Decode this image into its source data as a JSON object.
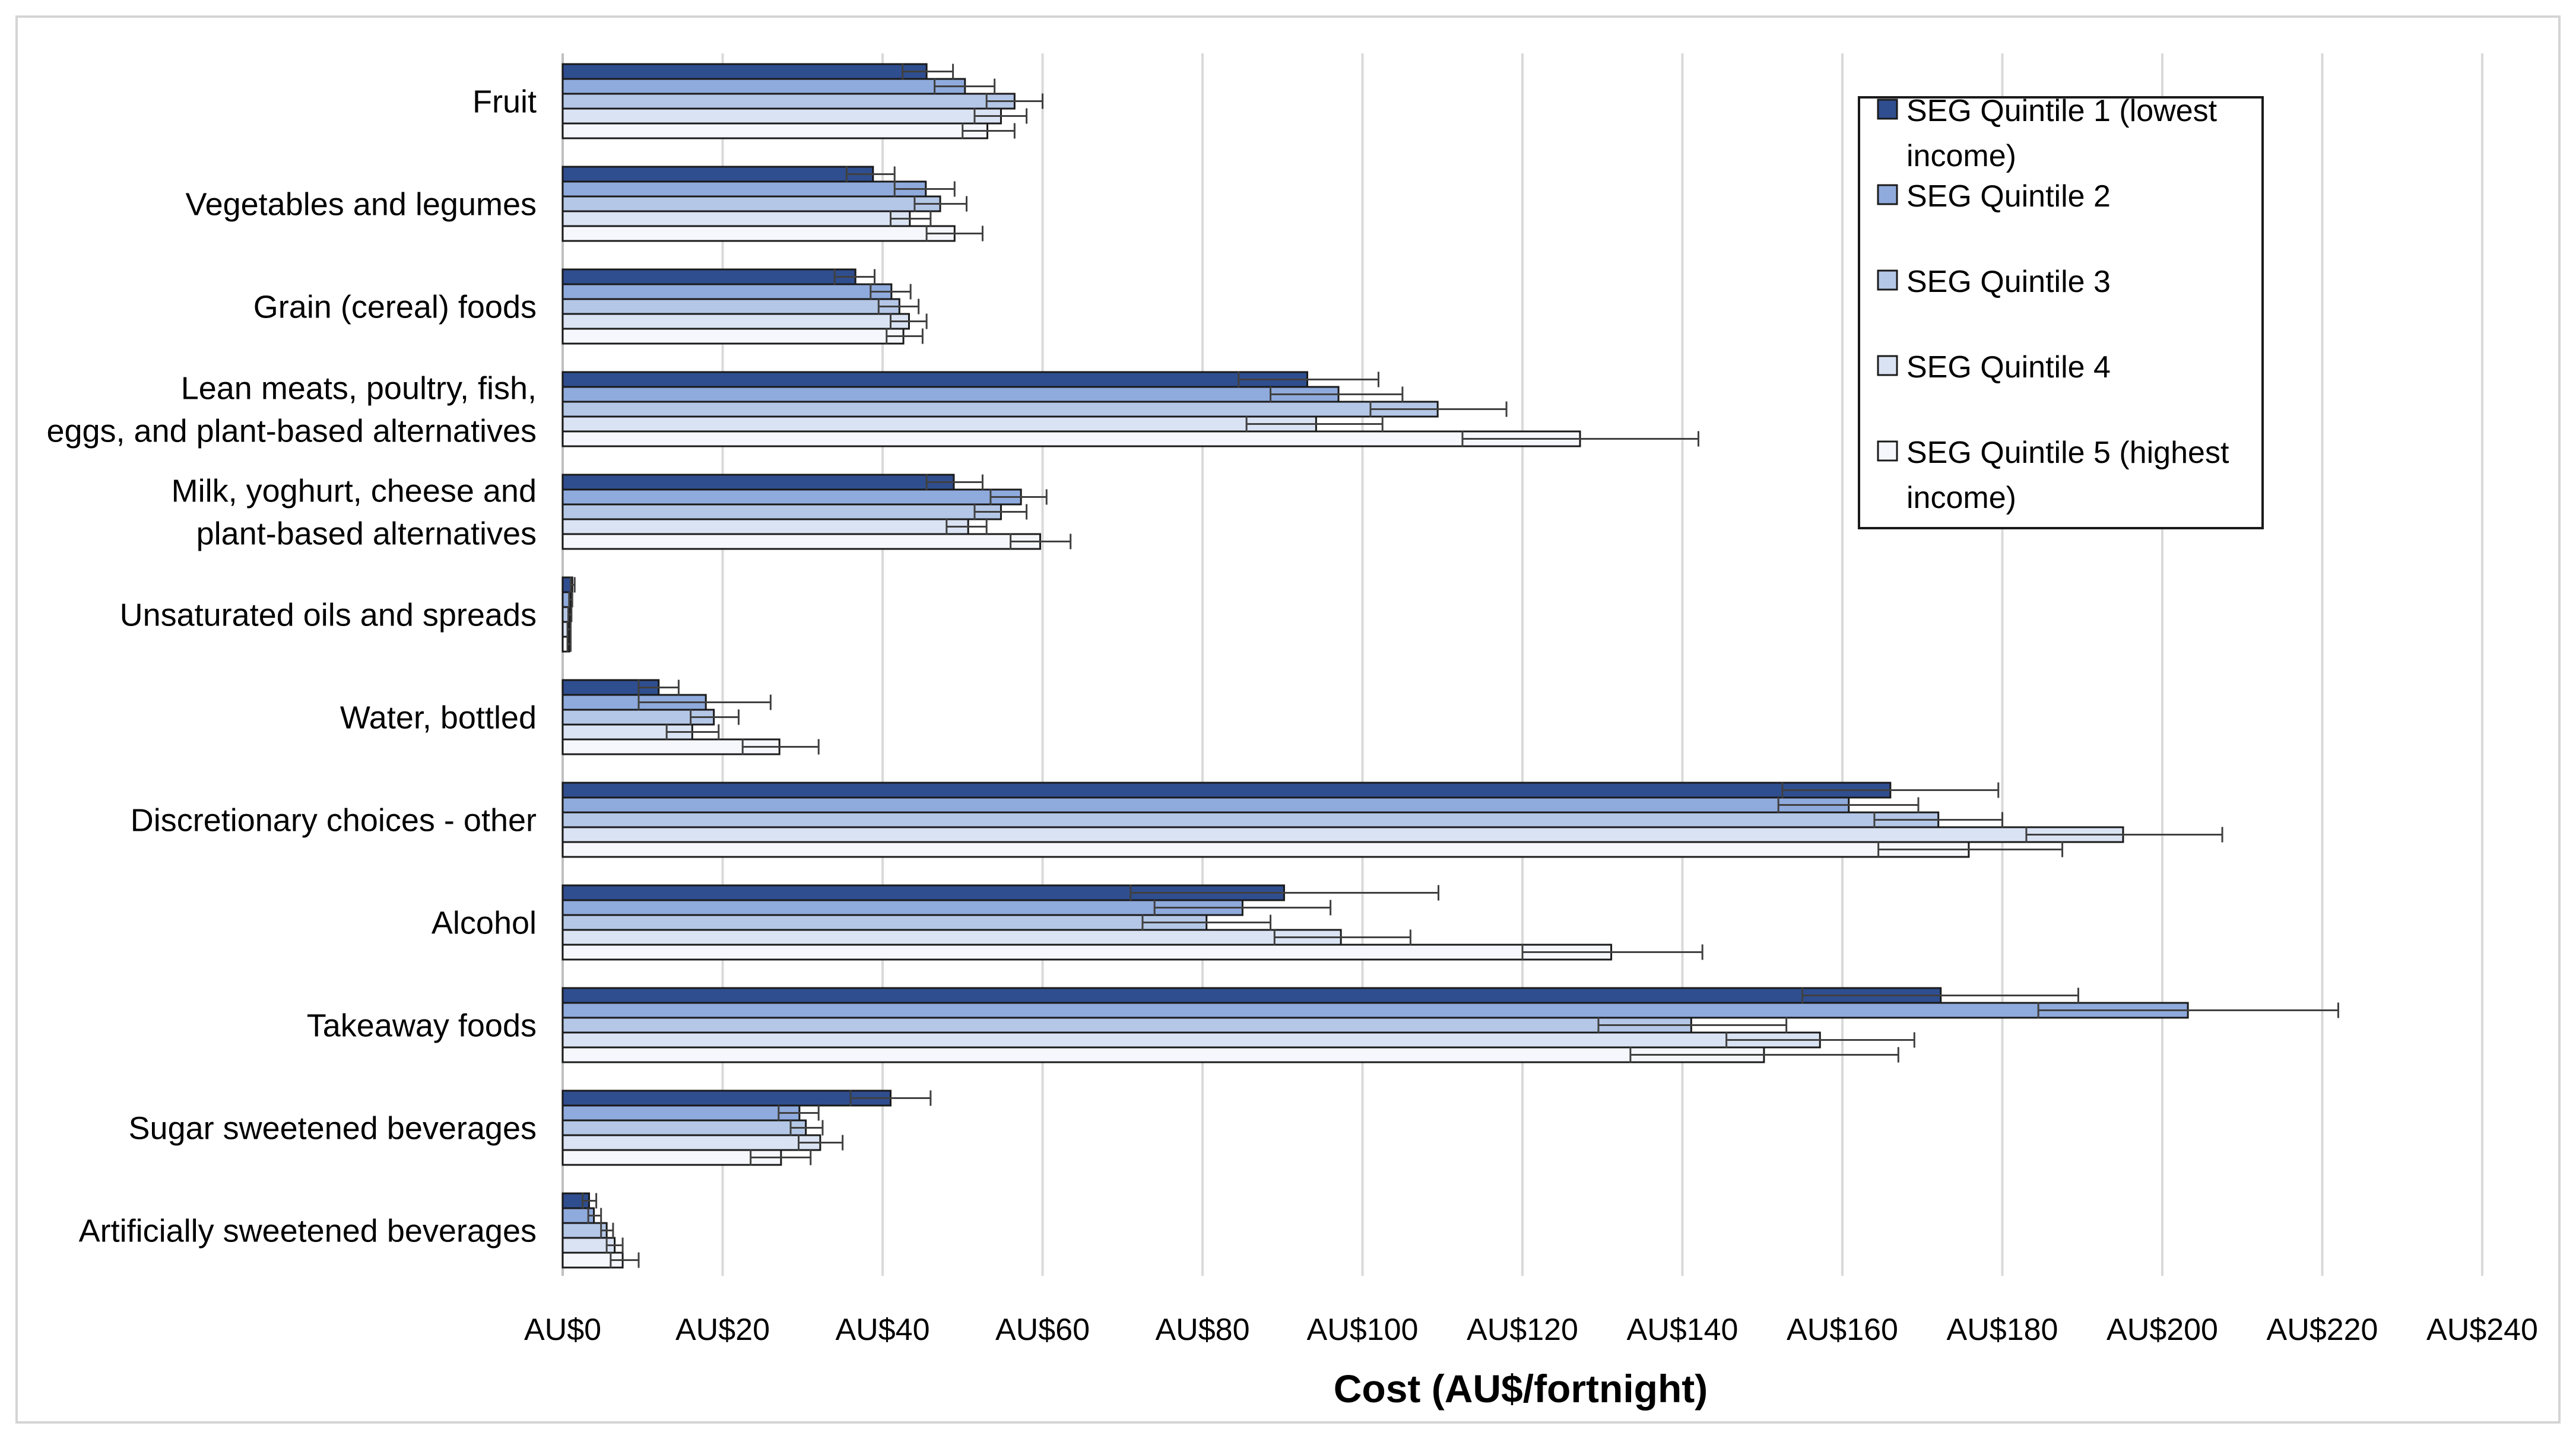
{
  "chart_data": {
    "type": "bar",
    "orientation": "horizontal",
    "title": "",
    "xlabel": "Cost (AU$/fortnight)",
    "ylabel": "",
    "xlim": [
      0,
      240
    ],
    "x_ticks": [
      0,
      20,
      40,
      60,
      80,
      100,
      120,
      140,
      160,
      180,
      200,
      220,
      240
    ],
    "x_tick_labels": [
      "AU$0",
      "AU$20",
      "AU$40",
      "AU$60",
      "AU$80",
      "AU$100",
      "AU$120",
      "AU$140",
      "AU$160",
      "AU$180",
      "AU$200",
      "AU$220",
      "AU$240"
    ],
    "grid": "vertical",
    "legend_position": "top-right",
    "error_bars": true,
    "categories": [
      "Fruit",
      "Vegetables and legumes",
      "Grain (cereal) foods",
      "Lean meats, poultry, fish, eggs, and plant-based alternatives",
      "Milk, yoghurt, cheese and plant-based alternatives",
      "Unsaturated oils and spreads",
      "Water, bottled",
      "Discretionary choices - other",
      "Alcohol",
      "Takeaway foods",
      "Sugar sweetened beverages",
      "Artificially sweetened beverages"
    ],
    "category_label_lines": [
      [
        "Fruit"
      ],
      [
        "Vegetables and legumes"
      ],
      [
        "Grain (cereal) foods"
      ],
      [
        "Lean meats, poultry, fish,",
        "eggs, and plant-based alternatives"
      ],
      [
        "Milk, yoghurt, cheese and",
        "plant-based alternatives"
      ],
      [
        "Unsaturated oils and spreads"
      ],
      [
        "Water, bottled"
      ],
      [
        "Discretionary choices - other"
      ],
      [
        "Alcohol"
      ],
      [
        "Takeaway foods"
      ],
      [
        "Sugar sweetened beverages"
      ],
      [
        "Artificially sweetened beverages"
      ]
    ],
    "series": [
      {
        "name": "SEG Quintile 1 (lowest income)",
        "legend_lines": [
          "SEG Quintile 1 (lowest",
          "income)"
        ],
        "color": "#2f4e8f",
        "values": [
          45.5,
          38.8,
          36.6,
          93.1,
          48.9,
          1.2,
          12.0,
          166.0,
          90.2,
          172.3,
          41.0,
          3.3
        ],
        "error_low": [
          42.5,
          35.5,
          34.0,
          84.5,
          45.5,
          1.0,
          9.5,
          152.5,
          71.0,
          155.0,
          36.0,
          2.5
        ],
        "error_high": [
          48.8,
          41.5,
          39.0,
          102.0,
          52.5,
          1.5,
          14.5,
          179.5,
          109.5,
          189.5,
          46.0,
          4.2
        ]
      },
      {
        "name": "SEG Quintile 2",
        "legend_lines": [
          "SEG Quintile 2"
        ],
        "color": "#8faadc",
        "values": [
          50.3,
          45.4,
          41.1,
          97.0,
          57.3,
          1.0,
          17.9,
          160.8,
          85.0,
          203.2,
          29.6,
          3.9
        ],
        "error_low": [
          46.5,
          41.5,
          38.5,
          88.5,
          53.5,
          0.8,
          9.5,
          152.0,
          74.0,
          184.5,
          27.0,
          3.2
        ],
        "error_high": [
          54.0,
          49.0,
          43.5,
          105.0,
          60.5,
          1.2,
          26.0,
          169.5,
          96.0,
          222.0,
          32.0,
          4.8
        ]
      },
      {
        "name": "SEG Quintile 3",
        "legend_lines": [
          "SEG Quintile 3"
        ],
        "color": "#b4c7e7",
        "values": [
          56.5,
          47.2,
          42.1,
          109.4,
          54.8,
          0.9,
          18.9,
          172.0,
          80.5,
          141.1,
          30.4,
          5.5
        ],
        "error_low": [
          53.0,
          44.0,
          39.5,
          101.0,
          51.5,
          0.7,
          16.0,
          164.0,
          72.5,
          129.5,
          28.5,
          4.8
        ],
        "error_high": [
          60.0,
          50.5,
          44.5,
          118.0,
          58.0,
          1.1,
          22.0,
          180.0,
          88.5,
          153.0,
          32.5,
          6.3
        ]
      },
      {
        "name": "SEG Quintile 4",
        "legend_lines": [
          "SEG Quintile 4"
        ],
        "color": "#dae3f3",
        "values": [
          54.8,
          43.4,
          43.3,
          94.2,
          50.7,
          0.8,
          16.2,
          195.1,
          97.3,
          157.2,
          32.2,
          6.5
        ],
        "error_low": [
          51.5,
          41.0,
          41.0,
          85.5,
          48.0,
          0.6,
          13.0,
          183.0,
          89.0,
          145.5,
          29.5,
          5.5
        ],
        "error_high": [
          58.0,
          46.0,
          45.5,
          102.5,
          53.0,
          1.0,
          19.5,
          207.5,
          106.0,
          169.0,
          35.0,
          7.5
        ]
      },
      {
        "name": "SEG Quintile 5 (highest income)",
        "legend_lines": [
          "SEG Quintile 5 (highest",
          "income)"
        ],
        "color": "#f5f7fc",
        "values": [
          53.1,
          49.0,
          42.6,
          127.2,
          59.7,
          0.8,
          27.1,
          175.8,
          131.1,
          150.2,
          27.3,
          7.5
        ],
        "error_low": [
          50.0,
          45.5,
          40.5,
          112.5,
          56.0,
          0.6,
          22.5,
          164.5,
          120.0,
          133.5,
          23.5,
          6.0
        ],
        "error_high": [
          56.5,
          52.5,
          45.0,
          142.0,
          63.5,
          1.0,
          32.0,
          187.5,
          142.5,
          167.0,
          31.0,
          9.5
        ]
      }
    ]
  }
}
